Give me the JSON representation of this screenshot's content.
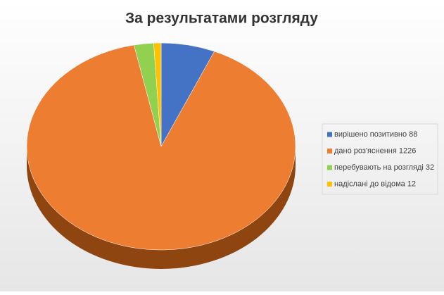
{
  "chart_data": {
    "type": "pie3d",
    "title": "За результатами розгляду",
    "categories": [
      "вирішено позитивно 88",
      "дано роз'яснення 1226",
      "перебувають на розгляді 32",
      "надіслані до відома 12"
    ],
    "values": [
      88,
      1226,
      32,
      12
    ],
    "colors": [
      "#4472c4",
      "#ed7d31",
      "#92d050",
      "#ffc000"
    ],
    "side_colors": [
      "#2c4d8a",
      "#8f4510",
      "#5f8a2e",
      "#a87e00"
    ],
    "legend": "right"
  }
}
